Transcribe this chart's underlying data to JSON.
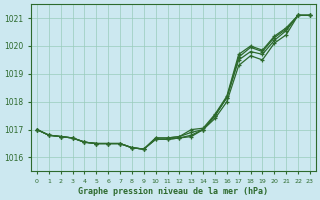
{
  "title": "Graphe pression niveau de la mer (hPa)",
  "background_color": "#cce8f0",
  "grid_color": "#99ccbb",
  "line_color": "#2d6a2d",
  "x_labels": [
    "0",
    "1",
    "2",
    "3",
    "4",
    "5",
    "6",
    "7",
    "8",
    "9",
    "10",
    "11",
    "12",
    "13",
    "14",
    "15",
    "16",
    "17",
    "18",
    "19",
    "20",
    "21",
    "22",
    "23"
  ],
  "ylim": [
    1015.5,
    1021.5
  ],
  "yticks": [
    1016,
    1017,
    1018,
    1019,
    1020,
    1021
  ],
  "line1": [
    1017.0,
    1016.8,
    1016.75,
    1016.7,
    1016.55,
    1016.5,
    1016.5,
    1016.5,
    1016.35,
    1016.3,
    1016.65,
    1016.65,
    1016.7,
    1016.75,
    1017.0,
    1017.5,
    1018.15,
    1019.6,
    1019.95,
    1019.8,
    1020.3,
    1020.6,
    1021.1,
    1021.1
  ],
  "line2": [
    1017.0,
    1016.8,
    1016.75,
    1016.7,
    1016.55,
    1016.5,
    1016.5,
    1016.5,
    1016.35,
    1016.3,
    1016.65,
    1016.65,
    1016.7,
    1016.8,
    1017.0,
    1017.4,
    1018.0,
    1019.3,
    1019.65,
    1019.5,
    1020.1,
    1020.4,
    1021.1,
    1021.1
  ],
  "line3": [
    1017.0,
    1016.8,
    1016.75,
    1016.7,
    1016.55,
    1016.5,
    1016.5,
    1016.5,
    1016.35,
    1016.3,
    1016.7,
    1016.7,
    1016.75,
    1016.9,
    1017.0,
    1017.5,
    1018.15,
    1019.5,
    1019.8,
    1019.7,
    1020.2,
    1020.55,
    1021.1,
    1021.1
  ],
  "line4": [
    1017.0,
    1016.8,
    1016.75,
    1016.7,
    1016.55,
    1016.5,
    1016.5,
    1016.5,
    1016.35,
    1016.3,
    1016.7,
    1016.7,
    1016.75,
    1017.0,
    1017.05,
    1017.55,
    1018.2,
    1019.7,
    1020.0,
    1019.85,
    1020.35,
    1020.65,
    1021.1,
    1021.1
  ]
}
